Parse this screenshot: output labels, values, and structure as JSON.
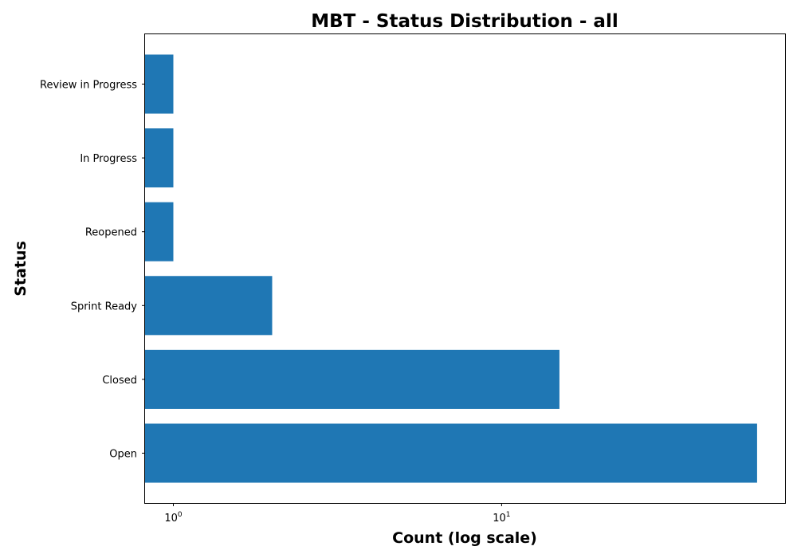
{
  "chart_data": {
    "type": "bar",
    "orientation": "horizontal",
    "title": "MBT - Status Distribution - all",
    "xlabel": "Count (log scale)",
    "ylabel": "Status",
    "x_scale": "log",
    "xlim": [
      0.82,
      73
    ],
    "x_ticks": [
      {
        "value": 1,
        "base": "10",
        "exp": "0"
      },
      {
        "value": 10,
        "base": "10",
        "exp": "1"
      }
    ],
    "categories": [
      "Open",
      "Closed",
      "Sprint Ready",
      "Reopened",
      "In Progress",
      "Review in Progress"
    ],
    "values": [
      60,
      15,
      2,
      1,
      1,
      1
    ],
    "bar_color": "#1f77b4",
    "grid": false,
    "legend": "none"
  }
}
